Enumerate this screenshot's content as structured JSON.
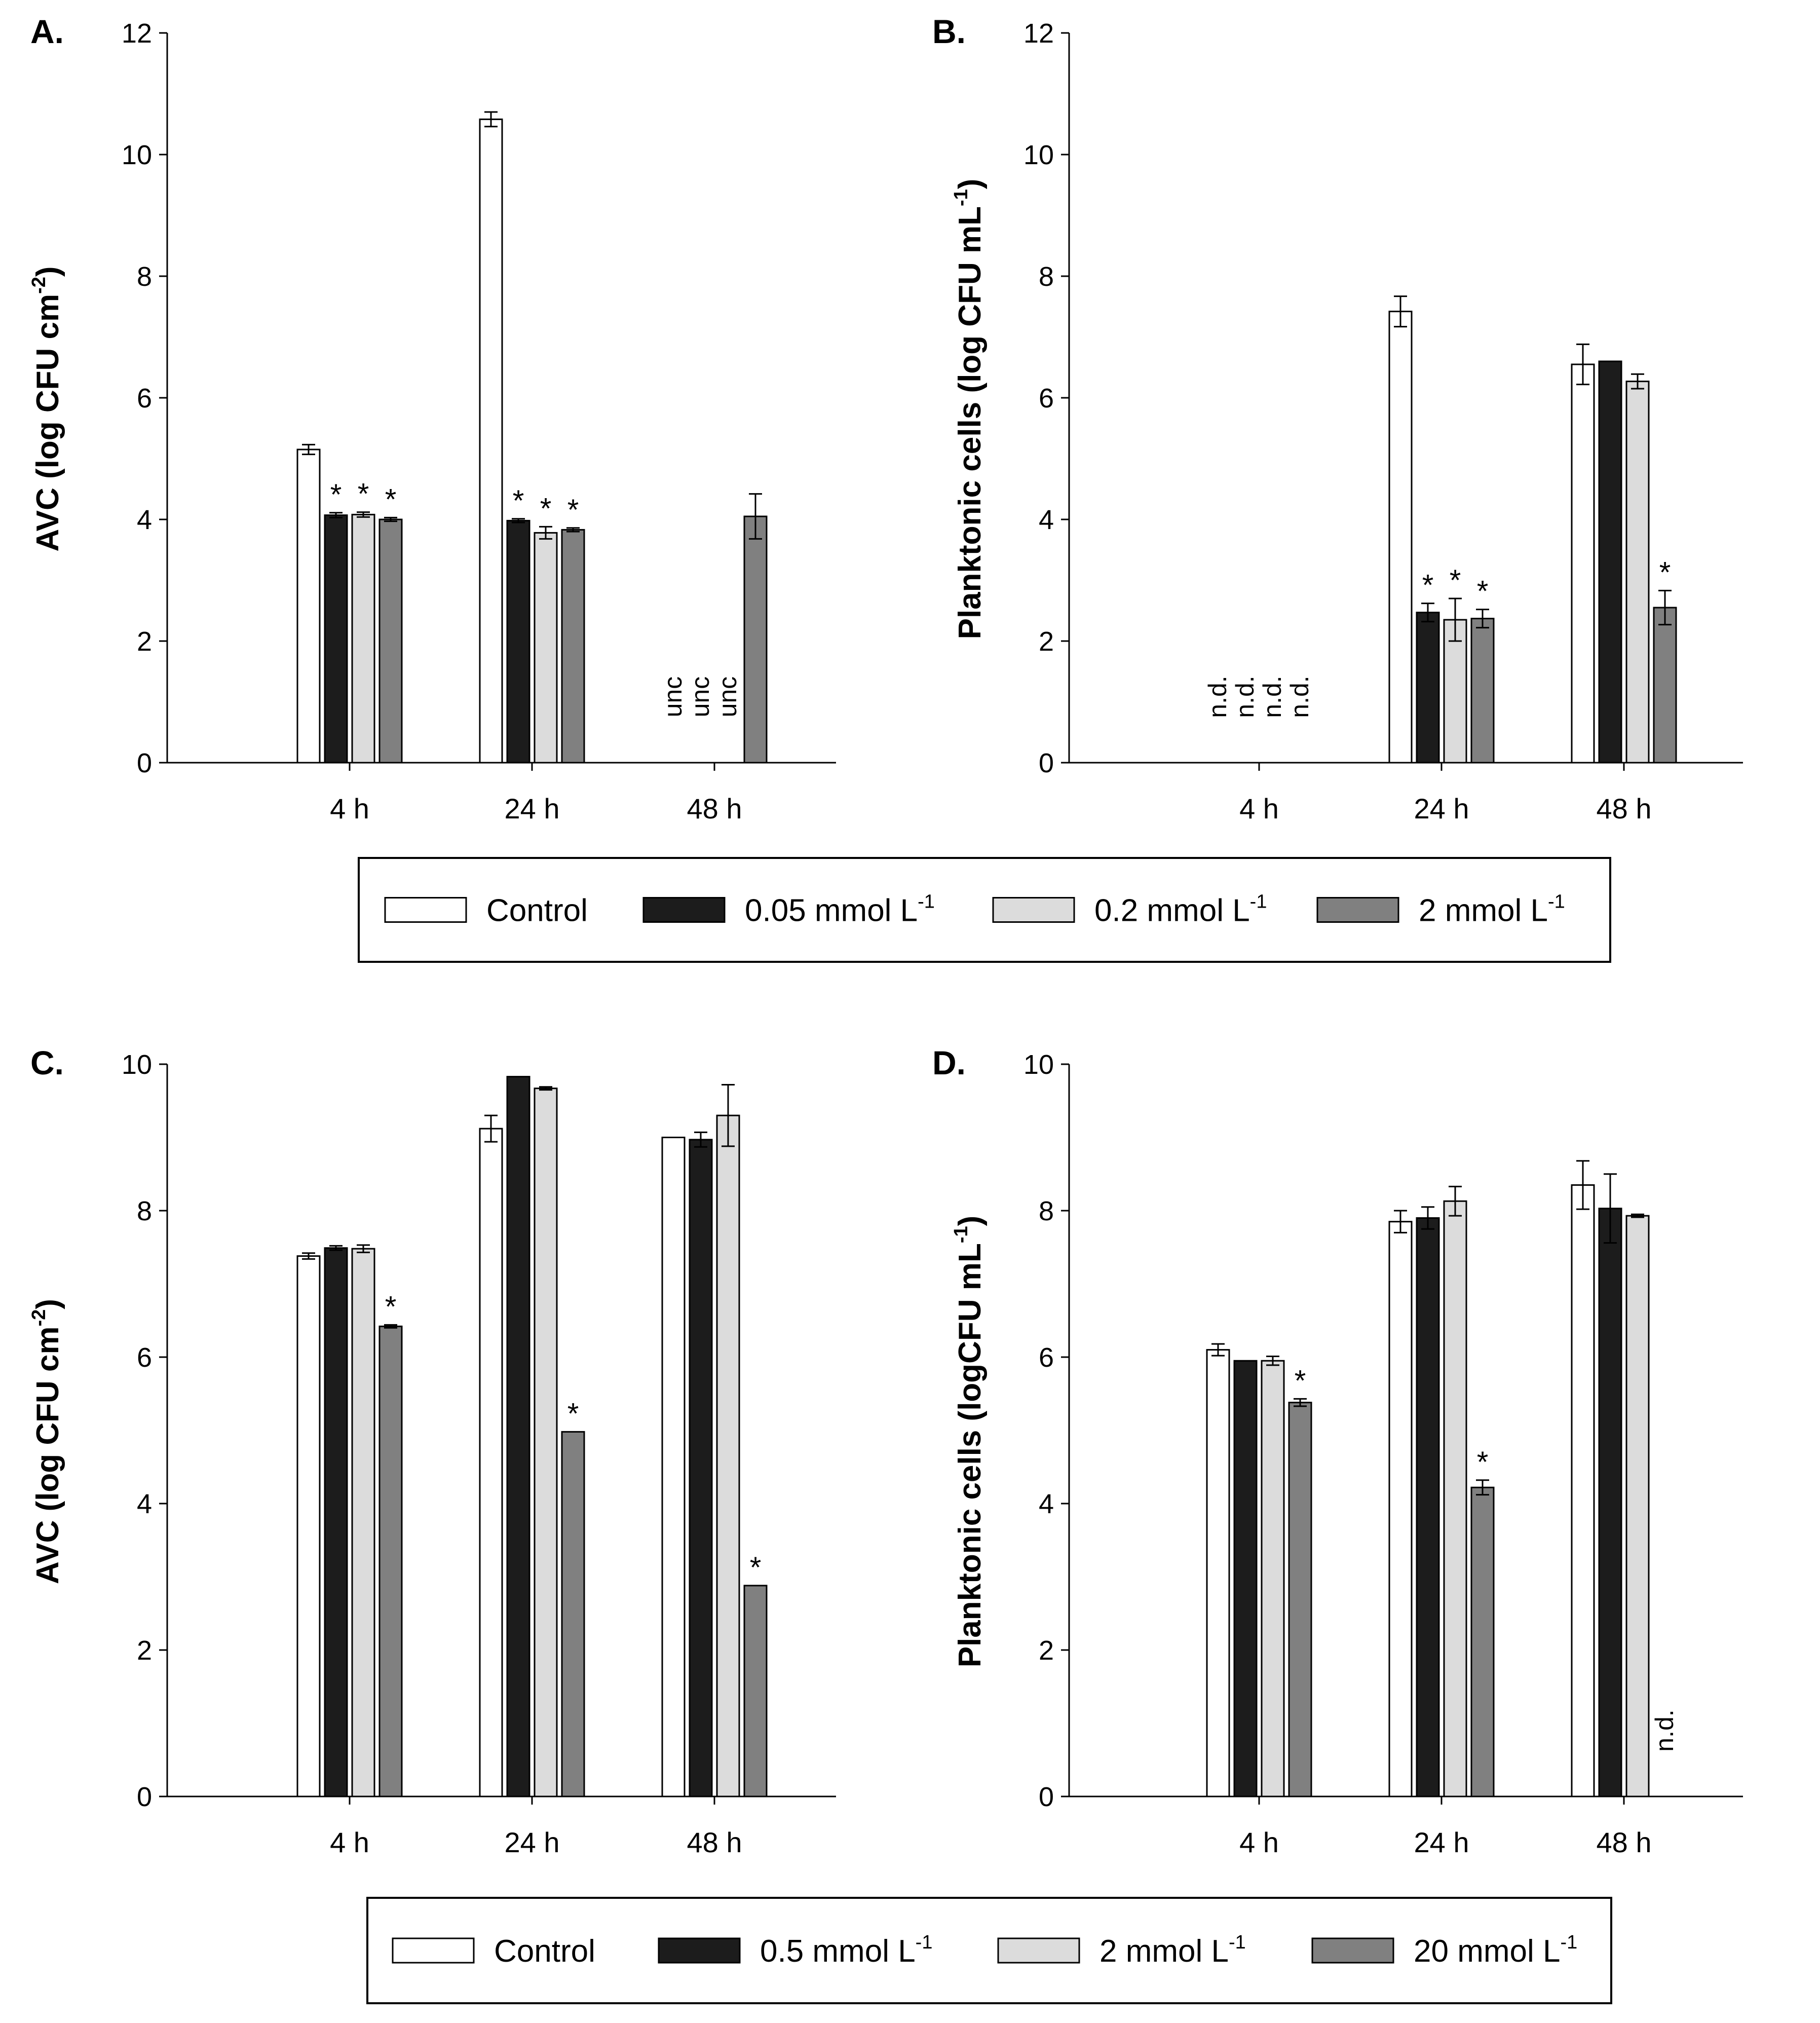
{
  "colors": {
    "control": "#ffffff",
    "s1": "#1c1c1c",
    "s2": "#dcdcdc",
    "s3": "#808080",
    "outline": "#000000"
  },
  "legends": [
    {
      "items": [
        {
          "label": "Control",
          "unit": "",
          "sup": ""
        },
        {
          "label": "0.05 mmol L",
          "sup": "-1"
        },
        {
          "label": "0.2 mmol L",
          "sup": "-1"
        },
        {
          "label": "2 mmol L",
          "sup": "-1"
        }
      ]
    },
    {
      "items": [
        {
          "label": "Control",
          "sup": ""
        },
        {
          "label": "0.5 mmol L",
          "sup": "-1"
        },
        {
          "label": "2 mmol L",
          "sup": "-1"
        },
        {
          "label": "20 mmol L",
          "sup": "-1"
        }
      ]
    }
  ],
  "chart_data": [
    {
      "type": "bar",
      "panel": "A.",
      "ylabel": "AVC (log CFU cm",
      "ylabel_sup": "-2",
      "ylabel_end": ")",
      "categories": [
        "4 h",
        "24 h",
        "48 h"
      ],
      "ylim": [
        0,
        12
      ],
      "yticks": [
        0,
        2,
        4,
        6,
        8,
        10,
        12
      ],
      "series": [
        {
          "values": [
            5.15,
            10.58,
            null
          ],
          "errors": [
            0.08,
            0.12,
            null
          ]
        },
        {
          "values": [
            4.07,
            3.98,
            null
          ],
          "errors": [
            0.04,
            0.03,
            null
          ]
        },
        {
          "values": [
            4.08,
            3.78,
            null
          ],
          "errors": [
            0.04,
            0.1,
            null
          ]
        },
        {
          "values": [
            4.0,
            3.83,
            4.05
          ],
          "errors": [
            0.03,
            0.03,
            0.37
          ]
        }
      ],
      "stars": [
        [
          null,
          "*",
          "*",
          "*"
        ],
        [
          null,
          "*",
          "*",
          "*"
        ],
        [
          null,
          null,
          null,
          null
        ]
      ],
      "notes": [
        [
          null,
          null,
          null,
          null
        ],
        [
          null,
          null,
          null,
          null
        ],
        [
          "unc",
          "unc",
          "unc",
          null
        ]
      ]
    },
    {
      "type": "bar",
      "panel": "B.",
      "ylabel": "Planktonic cells (log CFU mL",
      "ylabel_sup": "-1",
      "ylabel_end": ")",
      "categories": [
        "4 h",
        "24 h",
        "48 h"
      ],
      "ylim": [
        0,
        12
      ],
      "yticks": [
        0,
        2,
        4,
        6,
        8,
        10,
        12
      ],
      "series": [
        {
          "values": [
            null,
            7.42,
            6.55
          ],
          "errors": [
            null,
            0.25,
            0.33
          ]
        },
        {
          "values": [
            null,
            2.47,
            6.6
          ],
          "errors": [
            null,
            0.15,
            0.0
          ]
        },
        {
          "values": [
            null,
            2.35,
            6.27
          ],
          "errors": [
            null,
            0.35,
            0.12
          ]
        },
        {
          "values": [
            null,
            2.37,
            2.55
          ],
          "errors": [
            null,
            0.15,
            0.28
          ]
        }
      ],
      "stars": [
        [
          null,
          null,
          null,
          null
        ],
        [
          null,
          "*",
          "*",
          "*"
        ],
        [
          null,
          null,
          null,
          "*"
        ]
      ],
      "notes": [
        [
          "n.d.",
          "n.d.",
          "n.d.",
          "n.d."
        ],
        [
          null,
          null,
          null,
          null
        ],
        [
          null,
          null,
          null,
          null
        ]
      ]
    },
    {
      "type": "bar",
      "panel": "C.",
      "ylabel": "AVC (log CFU cm",
      "ylabel_sup": "-2",
      "ylabel_end": ")",
      "categories": [
        "4 h",
        "24 h",
        "48 h"
      ],
      "ylim": [
        0,
        10
      ],
      "yticks": [
        0,
        2,
        4,
        6,
        8,
        10
      ],
      "series": [
        {
          "values": [
            7.38,
            9.12,
            9.0
          ],
          "errors": [
            0.04,
            0.18,
            0.0
          ]
        },
        {
          "values": [
            7.49,
            9.83,
            8.97
          ],
          "errors": [
            0.03,
            0.0,
            0.1
          ]
        },
        {
          "values": [
            7.48,
            9.67,
            9.3
          ],
          "errors": [
            0.05,
            0.02,
            0.42
          ]
        },
        {
          "values": [
            6.42,
            4.98,
            2.88
          ],
          "errors": [
            0.02,
            0.0,
            0.0
          ]
        }
      ],
      "stars": [
        [
          null,
          null,
          null,
          "*"
        ],
        [
          null,
          null,
          null,
          "*"
        ],
        [
          null,
          null,
          null,
          "*"
        ]
      ],
      "notes": [
        [
          null,
          null,
          null,
          null
        ],
        [
          null,
          null,
          null,
          null
        ],
        [
          null,
          null,
          null,
          null
        ]
      ]
    },
    {
      "type": "bar",
      "panel": "D.",
      "ylabel": "Planktonic cells (logCFU mL",
      "ylabel_sup": "-1",
      "ylabel_end": ")",
      "categories": [
        "4 h",
        "24 h",
        "48 h"
      ],
      "ylim": [
        0,
        10
      ],
      "yticks": [
        0,
        2,
        4,
        6,
        8,
        10
      ],
      "series": [
        {
          "values": [
            6.1,
            7.85,
            8.35
          ],
          "errors": [
            0.08,
            0.15,
            0.33
          ]
        },
        {
          "values": [
            5.95,
            7.9,
            8.03
          ],
          "errors": [
            0.0,
            0.15,
            0.47
          ]
        },
        {
          "values": [
            5.95,
            8.13,
            7.93
          ],
          "errors": [
            0.06,
            0.2,
            0.02
          ]
        },
        {
          "values": [
            5.38,
            4.22,
            null
          ],
          "errors": [
            0.05,
            0.1,
            null
          ]
        }
      ],
      "stars": [
        [
          null,
          null,
          null,
          "*"
        ],
        [
          null,
          null,
          null,
          "*"
        ],
        [
          null,
          null,
          null,
          null
        ]
      ],
      "notes": [
        [
          null,
          null,
          null,
          null
        ],
        [
          null,
          null,
          null,
          null
        ],
        [
          null,
          null,
          null,
          "n.d."
        ]
      ]
    }
  ]
}
